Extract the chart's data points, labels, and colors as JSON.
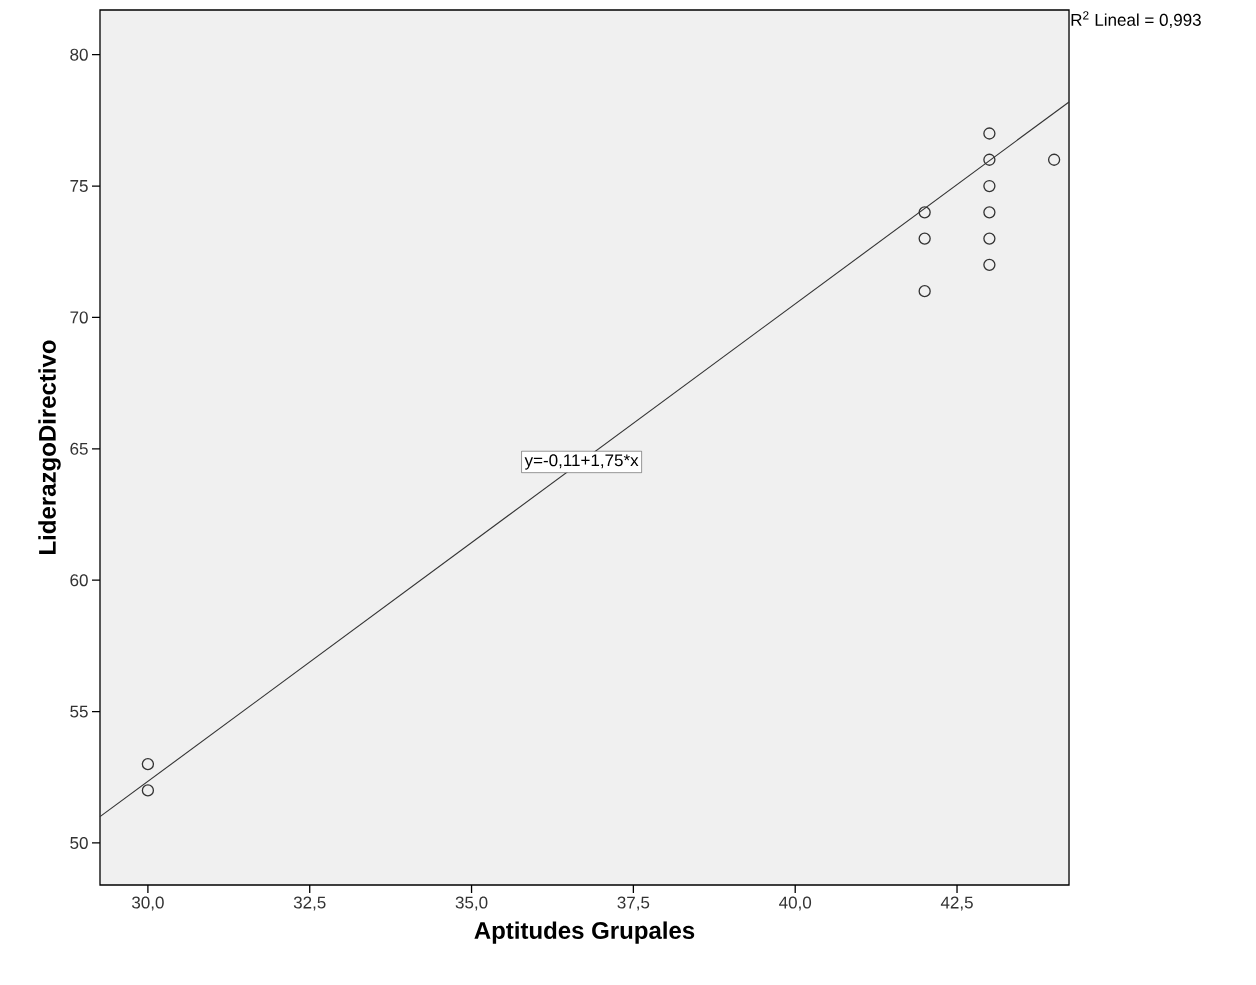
{
  "chart_data": {
    "type": "scatter",
    "xlabel": "Aptitudes Grupales",
    "ylabel": "LiderazgoDirectivo",
    "annotations": [
      "R$^{2}$ Lineal = 0,993",
      {
        "text": "y=-0,11+1,75*x",
        "x": 36.7,
        "y": 64.5
      }
    ],
    "series": [
      {
        "color": "#333333",
        "marker": "circle",
        "x": [
          30,
          30,
          42,
          42,
          42,
          43,
          43,
          43,
          43,
          43,
          43,
          44
        ],
        "values": [
          53,
          52,
          74,
          73,
          71,
          77,
          76,
          75,
          74,
          73,
          72,
          76
        ]
      },
      {
        "type": "line",
        "color": "#333333",
        "marker": "none",
        "x": [
          29.26,
          44.23
        ],
        "values": [
          51.0,
          78.2
        ]
      }
    ],
    "xlim": [
      29.26,
      44.23
    ],
    "ylim": [
      48.4,
      81.7
    ],
    "xticks": [
      {
        "value": 30,
        "label": "30,0"
      },
      {
        "value": 32.5,
        "label": "32,5"
      },
      {
        "value": 35,
        "label": "35,0"
      },
      {
        "value": 37.5,
        "label": "37,5"
      },
      {
        "value": 40,
        "label": "40,0"
      },
      {
        "value": 42.5,
        "label": "42,5"
      }
    ],
    "yticks": [
      50,
      55,
      60,
      65,
      70,
      75,
      80
    ]
  }
}
